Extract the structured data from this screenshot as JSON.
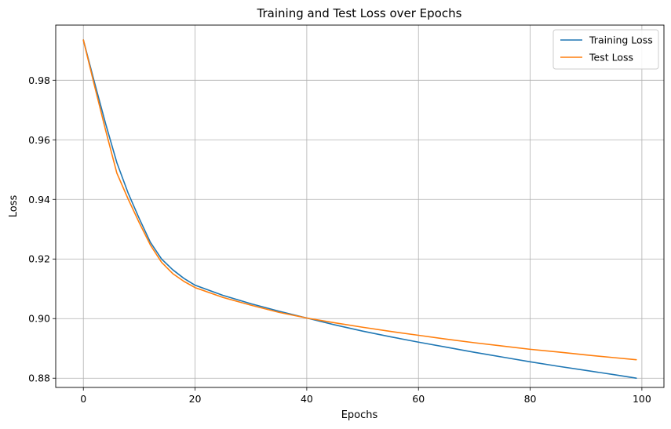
{
  "chart_data": {
    "type": "line",
    "title": "Training and Test Loss over Epochs",
    "xlabel": "Epochs",
    "ylabel": "Loss",
    "xlim": [
      -4.95,
      103.95
    ],
    "ylim": [
      0.8769,
      0.9985
    ],
    "xticks": [
      0,
      20,
      40,
      60,
      80,
      100
    ],
    "yticks": [
      0.88,
      0.9,
      0.92,
      0.94,
      0.96,
      0.98
    ],
    "ytick_labels": [
      "0.88",
      "0.90",
      "0.92",
      "0.94",
      "0.96",
      "0.98"
    ],
    "grid": true,
    "legend_position": "top-right",
    "series": [
      {
        "name": "Training Loss",
        "color": "#1f77b4",
        "x": [
          0,
          2,
          4,
          6,
          8,
          10,
          12,
          14,
          16,
          18,
          20,
          25,
          30,
          35,
          40,
          45,
          50,
          55,
          60,
          65,
          70,
          75,
          80,
          85,
          90,
          95,
          99
        ],
        "y": [
          0.9935,
          0.9792,
          0.9653,
          0.9523,
          0.9422,
          0.9336,
          0.9256,
          0.92,
          0.9164,
          0.9135,
          0.9112,
          0.9078,
          0.905,
          0.9025,
          0.9002,
          0.8979,
          0.8958,
          0.8939,
          0.8921,
          0.8904,
          0.8887,
          0.8871,
          0.8855,
          0.884,
          0.8826,
          0.8812,
          0.88
        ]
      },
      {
        "name": "Test Loss",
        "color": "#ff7f0e",
        "x": [
          0,
          2,
          4,
          6,
          8,
          10,
          12,
          14,
          16,
          18,
          20,
          25,
          30,
          35,
          40,
          45,
          50,
          55,
          60,
          65,
          70,
          75,
          80,
          85,
          90,
          95,
          99
        ],
        "y": [
          0.9935,
          0.9781,
          0.9631,
          0.9488,
          0.9402,
          0.9322,
          0.9247,
          0.9189,
          0.9151,
          0.9125,
          0.9104,
          0.9071,
          0.9045,
          0.9021,
          0.9002,
          0.8986,
          0.8971,
          0.8957,
          0.8944,
          0.8931,
          0.8919,
          0.8908,
          0.8897,
          0.8888,
          0.8878,
          0.8869,
          0.8862
        ]
      }
    ]
  }
}
